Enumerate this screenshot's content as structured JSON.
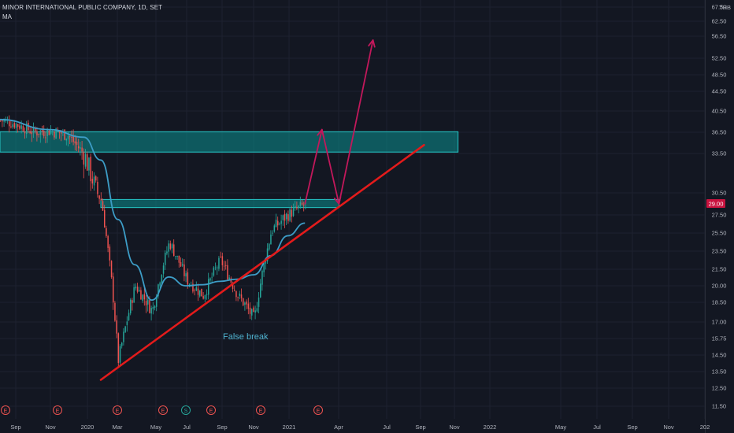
{
  "header": {
    "title": "MINOR INTERNATIONAL PUBLIC COMPANY, 1D, SET",
    "indicator": "MA",
    "currency": "THB"
  },
  "chart_data": {
    "type": "candlestick",
    "symbol": "MINOR INTERNATIONAL PUBLIC COMPANY",
    "interval": "1D",
    "exchange": "SET",
    "currency": "THB",
    "current_price": "29.00",
    "y_ticks": [
      "67.50",
      "62.50",
      "56.50",
      "52.50",
      "48.50",
      "44.50",
      "40.50",
      "36.50",
      "33.50",
      "30.50",
      "27.50",
      "25.50",
      "23.50",
      "21.50",
      "20.00",
      "18.50",
      "17.00",
      "15.75",
      "14.50",
      "13.50",
      "12.50",
      "11.50"
    ],
    "x_ticks": [
      "Sep",
      "Nov",
      "2020",
      "Mar",
      "May",
      "Jul",
      "Sep",
      "Nov",
      "2021",
      "Apr",
      "Jul",
      "Sep",
      "Nov",
      "2022",
      "May",
      "Jul",
      "Sep",
      "Nov",
      "202"
    ],
    "earnings_markers": [
      "E",
      "E",
      "E",
      "E",
      "S",
      "E",
      "E",
      "E"
    ],
    "annotations": [
      {
        "text": "False break"
      }
    ],
    "price_path": [
      [
        "2019-08",
        38.8
      ],
      [
        "2019-09",
        38.0
      ],
      [
        "2019-10",
        36.6
      ],
      [
        "2019-11",
        36.8
      ],
      [
        "2019-12",
        36.2
      ],
      [
        "2020-01",
        33.4
      ],
      [
        "2020-02",
        29.5
      ],
      [
        "2020-03",
        14.2
      ],
      [
        "2020-04",
        20.0
      ],
      [
        "2020-05",
        17.8
      ],
      [
        "2020-06",
        24.5
      ],
      [
        "2020-07",
        20.6
      ],
      [
        "2020-08",
        19.1
      ],
      [
        "2020-09",
        22.5
      ],
      [
        "2020-10",
        19.2
      ],
      [
        "2020-11",
        17.2
      ],
      [
        "2020-12",
        25.8
      ],
      [
        "2021-01",
        27.6
      ],
      [
        "2021-02",
        29.0
      ]
    ],
    "ma_path": [
      [
        "2019-08",
        38.9
      ],
      [
        "2019-11",
        37.0
      ],
      [
        "2020-01",
        35.8
      ],
      [
        "2020-02",
        33.0
      ],
      [
        "2020-03",
        27.0
      ],
      [
        "2020-04",
        22.0
      ],
      [
        "2020-05",
        18.7
      ],
      [
        "2020-06",
        20.8
      ],
      [
        "2020-07",
        20.0
      ],
      [
        "2020-08",
        20.1
      ],
      [
        "2020-09",
        20.4
      ],
      [
        "2020-10",
        20.6
      ],
      [
        "2020-11",
        21.0
      ],
      [
        "2020-12",
        23.0
      ],
      [
        "2021-01",
        25.2
      ],
      [
        "2021-02",
        26.6
      ]
    ],
    "zones": [
      {
        "low": 33.7,
        "high": 36.6,
        "start": "2019-08",
        "end": "2021-11"
      },
      {
        "low": 28.5,
        "high": 29.6,
        "start": "2020-02",
        "end": "2021-04"
      }
    ],
    "trendline": [
      [
        "2020-02",
        13.0
      ],
      [
        "2021-09",
        34.7
      ]
    ],
    "projection": [
      [
        "2021-02",
        29.0
      ],
      [
        "2021-03",
        37.0
      ],
      [
        "2021-04",
        29.0
      ],
      [
        "2021-06",
        55.8
      ]
    ],
    "colors": {
      "background": "#131722",
      "grid": "#1e2230",
      "up": "#26a69a",
      "down": "#ef5350",
      "ma": "#3d9dc7",
      "trendline": "#e31b1b",
      "projection": "#c2185b",
      "zone_fill": "#0b8f8f",
      "zone_stroke": "#26c6c6",
      "annotation": "#4fb3d0",
      "price_label_bg": "#c8133f"
    }
  }
}
